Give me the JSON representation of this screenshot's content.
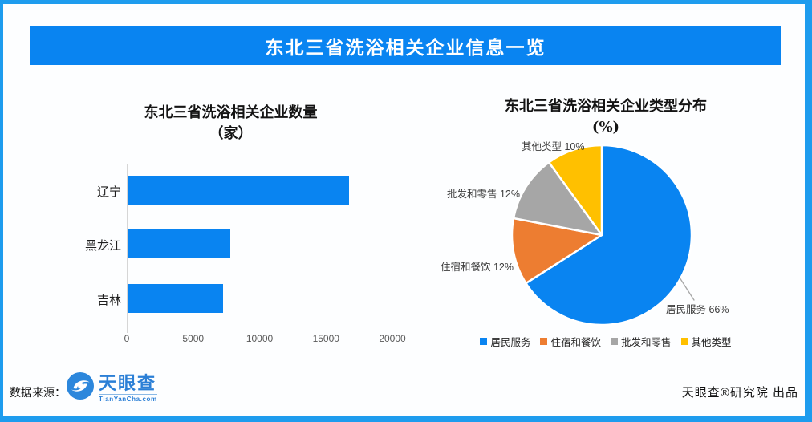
{
  "header": {
    "title": "东北三省洗浴相关企业信息一览",
    "accent_color": "#0984F1"
  },
  "chart_data": [
    {
      "type": "bar",
      "orientation": "horizontal",
      "title": "东北三省洗浴相关企业数量",
      "subtitle": "（家）",
      "categories": [
        "辽宁",
        "黑龙江",
        "吉林"
      ],
      "values": [
        16600,
        7700,
        7100
      ],
      "xlim": [
        0,
        20000
      ],
      "xticks": [
        0,
        5000,
        10000,
        15000,
        20000
      ],
      "bar_color": "#0984F1",
      "grid": false,
      "legend_position": "none"
    },
    {
      "type": "pie",
      "title": "东北三省洗浴相关企业类型分布",
      "subtitle": "(%)",
      "start_angle_deg": 0,
      "direction": "clockwise",
      "slices": [
        {
          "label": "居民服务",
          "value": 66,
          "color": "#0984F1",
          "callout": "居民服务 66%",
          "callout_leader": true
        },
        {
          "label": "住宿和餐饮",
          "value": 12,
          "color": "#ED7D31",
          "callout": "住宿和餐饮 12%",
          "callout_leader": false
        },
        {
          "label": "批发和零售",
          "value": 12,
          "color": "#A6A6A6",
          "callout": "批发和零售 12%",
          "callout_leader": false
        },
        {
          "label": "其他类型",
          "value": 10,
          "color": "#FFC000",
          "callout": "其他类型 10%",
          "callout_leader": false
        }
      ],
      "legend_position": "bottom",
      "leader_line_color": "#A6A6A6"
    }
  ],
  "footer": {
    "source_label": "数据来源：",
    "logo": {
      "name": "天眼查",
      "domain": "TianYanCha.com",
      "brand_color": "#2B7FD6"
    },
    "credit": "天眼查®研究院 出品"
  }
}
